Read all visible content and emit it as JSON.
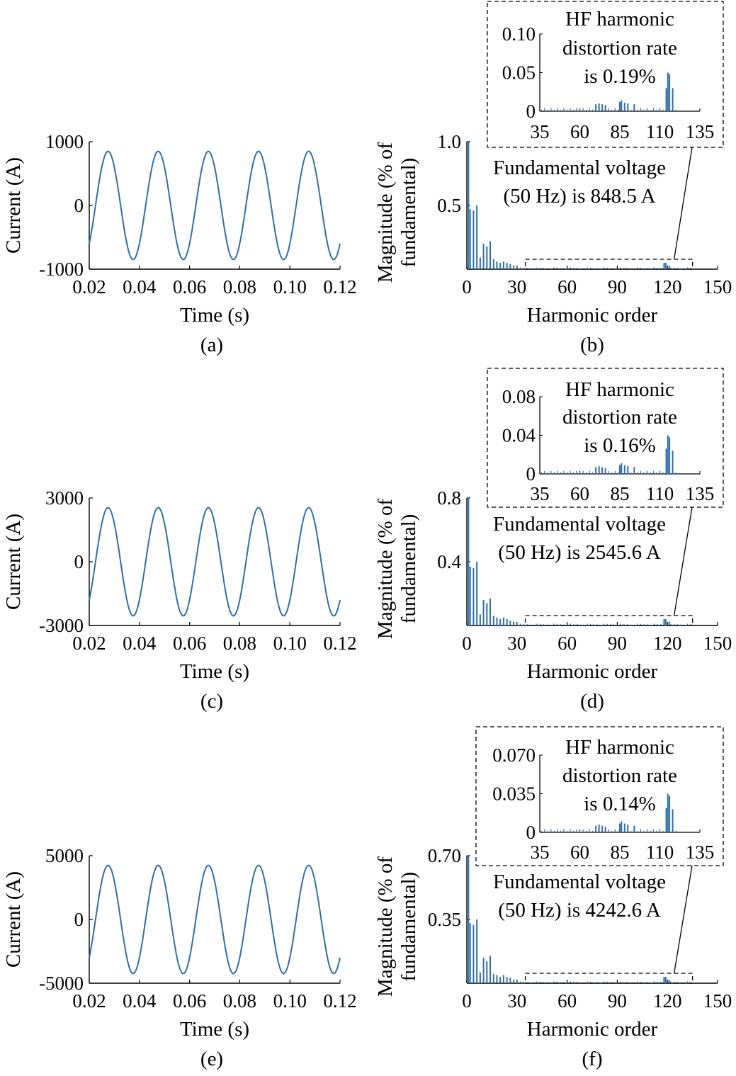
{
  "colors": {
    "line": "#2f6fa8",
    "axis": "#000000"
  },
  "chart_data": [
    {
      "type": "line",
      "id": "a",
      "caption": "(a)",
      "xlabel": "Time (s)",
      "ylabel": "Current (A)",
      "xlim": [
        0.02,
        0.12
      ],
      "ylim": [
        -1000,
        1000
      ],
      "xticks": [
        "0.02",
        "0.04",
        "0.06",
        "0.08",
        "0.10",
        "0.12"
      ],
      "yticks": [
        "-1000",
        "0",
        "1000"
      ],
      "series": [
        {
          "amplitude": 848.5,
          "frequency_hz": 50
        }
      ]
    },
    {
      "type": "bar",
      "id": "b",
      "caption": "(b)",
      "xlabel": "Harmonic order",
      "ylabel_lines": [
        "Magnitude (% of",
        "fundamental)"
      ],
      "xlim": [
        0,
        150
      ],
      "ylim": [
        0,
        1.0
      ],
      "xticks": [
        "0",
        "30",
        "60",
        "90",
        "120",
        "150"
      ],
      "yticks": [
        "0.5",
        "1.0"
      ],
      "annotation": [
        "Fundamental voltage",
        "(50 Hz) is 848.5 A"
      ],
      "bars": [
        {
          "x": 1,
          "y": 1.0
        },
        {
          "x": 2,
          "y": 0.47
        },
        {
          "x": 4,
          "y": 0.46
        },
        {
          "x": 6,
          "y": 0.5
        },
        {
          "x": 8,
          "y": 0.09
        },
        {
          "x": 10,
          "y": 0.2
        },
        {
          "x": 12,
          "y": 0.18
        },
        {
          "x": 14,
          "y": 0.22
        },
        {
          "x": 16,
          "y": 0.08
        },
        {
          "x": 18,
          "y": 0.06
        },
        {
          "x": 20,
          "y": 0.05
        },
        {
          "x": 22,
          "y": 0.06
        },
        {
          "x": 24,
          "y": 0.05
        },
        {
          "x": 26,
          "y": 0.04
        },
        {
          "x": 28,
          "y": 0.03
        },
        {
          "x": 30,
          "y": 0.02
        },
        {
          "x": 118,
          "y": 0.05
        },
        {
          "x": 119,
          "y": 0.05
        },
        {
          "x": 121,
          "y": 0.03
        }
      ],
      "inset": {
        "xlim": [
          35,
          135
        ],
        "ylim": [
          0,
          0.1
        ],
        "xticks": [
          "35",
          "60",
          "85",
          "110",
          "135"
        ],
        "yticks": [
          "0",
          "0.05",
          "0.10"
        ],
        "annotation": [
          "HF harmonic",
          "distortion rate",
          "is 0.19%"
        ],
        "bars": [
          {
            "x": 114,
            "y": 0.03
          },
          {
            "x": 115,
            "y": 0.05
          },
          {
            "x": 116,
            "y": 0.048
          },
          {
            "x": 118,
            "y": 0.03
          },
          {
            "x": 70,
            "y": 0.009
          },
          {
            "x": 72,
            "y": 0.01
          },
          {
            "x": 74,
            "y": 0.009
          },
          {
            "x": 76,
            "y": 0.008
          },
          {
            "x": 85,
            "y": 0.012
          },
          {
            "x": 86,
            "y": 0.014
          },
          {
            "x": 88,
            "y": 0.011
          },
          {
            "x": 90,
            "y": 0.01
          },
          {
            "x": 94,
            "y": 0.009
          }
        ]
      }
    },
    {
      "type": "line",
      "id": "c",
      "caption": "(c)",
      "xlabel": "Time (s)",
      "ylabel": "Current (A)",
      "xlim": [
        0.02,
        0.12
      ],
      "ylim": [
        -3000,
        3000
      ],
      "xticks": [
        "0.02",
        "0.04",
        "0.06",
        "0.08",
        "0.10",
        "0.12"
      ],
      "yticks": [
        "-3000",
        "0",
        "3000"
      ],
      "series": [
        {
          "amplitude": 2545.6,
          "frequency_hz": 50
        }
      ]
    },
    {
      "type": "bar",
      "id": "d",
      "caption": "(d)",
      "xlabel": "Harmonic order",
      "ylabel_lines": [
        "Magnitude (% of",
        "fundamental)"
      ],
      "xlim": [
        0,
        150
      ],
      "ylim": [
        0,
        0.8
      ],
      "xticks": [
        "0",
        "30",
        "60",
        "90",
        "120",
        "150"
      ],
      "yticks": [
        "0.4",
        "0.8"
      ],
      "annotation": [
        "Fundamental voltage",
        "(50 Hz) is 2545.6 A"
      ],
      "bars": [
        {
          "x": 1,
          "y": 0.8
        },
        {
          "x": 2,
          "y": 0.37
        },
        {
          "x": 4,
          "y": 0.36
        },
        {
          "x": 6,
          "y": 0.4
        },
        {
          "x": 8,
          "y": 0.07
        },
        {
          "x": 10,
          "y": 0.16
        },
        {
          "x": 12,
          "y": 0.14
        },
        {
          "x": 14,
          "y": 0.17
        },
        {
          "x": 16,
          "y": 0.06
        },
        {
          "x": 18,
          "y": 0.05
        },
        {
          "x": 20,
          "y": 0.04
        },
        {
          "x": 22,
          "y": 0.05
        },
        {
          "x": 24,
          "y": 0.04
        },
        {
          "x": 26,
          "y": 0.03
        },
        {
          "x": 28,
          "y": 0.025
        },
        {
          "x": 30,
          "y": 0.015
        },
        {
          "x": 118,
          "y": 0.04
        },
        {
          "x": 119,
          "y": 0.04
        },
        {
          "x": 121,
          "y": 0.025
        }
      ],
      "inset": {
        "xlim": [
          35,
          135
        ],
        "ylim": [
          0,
          0.08
        ],
        "xticks": [
          "35",
          "60",
          "85",
          "110",
          "135"
        ],
        "yticks": [
          "0",
          "0.04",
          "0.08"
        ],
        "annotation": [
          "HF harmonic",
          "distortion rate",
          "is 0.16%"
        ],
        "bars": [
          {
            "x": 114,
            "y": 0.026
          },
          {
            "x": 115,
            "y": 0.04
          },
          {
            "x": 116,
            "y": 0.038
          },
          {
            "x": 118,
            "y": 0.024
          },
          {
            "x": 70,
            "y": 0.007
          },
          {
            "x": 72,
            "y": 0.008
          },
          {
            "x": 74,
            "y": 0.007
          },
          {
            "x": 76,
            "y": 0.006
          },
          {
            "x": 85,
            "y": 0.009
          },
          {
            "x": 86,
            "y": 0.011
          },
          {
            "x": 88,
            "y": 0.009
          },
          {
            "x": 90,
            "y": 0.008
          },
          {
            "x": 94,
            "y": 0.007
          }
        ]
      }
    },
    {
      "type": "line",
      "id": "e",
      "caption": "(e)",
      "xlabel": "Time (s)",
      "ylabel": "Current (A)",
      "xlim": [
        0.02,
        0.12
      ],
      "ylim": [
        -5000,
        5000
      ],
      "xticks": [
        "0.02",
        "0.04",
        "0.06",
        "0.08",
        "0.10",
        "0.12"
      ],
      "yticks": [
        "-5000",
        "0",
        "5000"
      ],
      "series": [
        {
          "amplitude": 4242.6,
          "frequency_hz": 50
        }
      ]
    },
    {
      "type": "bar",
      "id": "f",
      "caption": "(f)",
      "xlabel": "Harmonic order",
      "ylabel_lines": [
        "Magnitude (% of",
        "fundamental)"
      ],
      "xlim": [
        0,
        150
      ],
      "ylim": [
        0,
        0.7
      ],
      "xticks": [
        "0",
        "30",
        "60",
        "90",
        "120",
        "150"
      ],
      "yticks": [
        "0.35",
        "0.70"
      ],
      "annotation": [
        "Fundamental voltage",
        "(50 Hz) is 4242.6 A"
      ],
      "bars": [
        {
          "x": 1,
          "y": 0.7
        },
        {
          "x": 2,
          "y": 0.33
        },
        {
          "x": 4,
          "y": 0.32
        },
        {
          "x": 6,
          "y": 0.35
        },
        {
          "x": 8,
          "y": 0.06
        },
        {
          "x": 10,
          "y": 0.14
        },
        {
          "x": 12,
          "y": 0.12
        },
        {
          "x": 14,
          "y": 0.15
        },
        {
          "x": 16,
          "y": 0.05
        },
        {
          "x": 18,
          "y": 0.045
        },
        {
          "x": 20,
          "y": 0.035
        },
        {
          "x": 22,
          "y": 0.045
        },
        {
          "x": 24,
          "y": 0.035
        },
        {
          "x": 26,
          "y": 0.03
        },
        {
          "x": 28,
          "y": 0.02
        },
        {
          "x": 30,
          "y": 0.012
        },
        {
          "x": 118,
          "y": 0.035
        },
        {
          "x": 119,
          "y": 0.035
        },
        {
          "x": 121,
          "y": 0.02
        }
      ],
      "inset": {
        "xlim": [
          35,
          135
        ],
        "ylim": [
          0,
          0.07
        ],
        "xticks": [
          "35",
          "60",
          "85",
          "110",
          "135"
        ],
        "yticks": [
          "0",
          "0.035",
          "0.070"
        ],
        "annotation": [
          "HF harmonic",
          "distortion rate",
          "is 0.14%"
        ],
        "bars": [
          {
            "x": 114,
            "y": 0.022
          },
          {
            "x": 115,
            "y": 0.035
          },
          {
            "x": 116,
            "y": 0.033
          },
          {
            "x": 118,
            "y": 0.021
          },
          {
            "x": 70,
            "y": 0.006
          },
          {
            "x": 72,
            "y": 0.007
          },
          {
            "x": 74,
            "y": 0.006
          },
          {
            "x": 76,
            "y": 0.005
          },
          {
            "x": 85,
            "y": 0.008
          },
          {
            "x": 86,
            "y": 0.01
          },
          {
            "x": 88,
            "y": 0.008
          },
          {
            "x": 90,
            "y": 0.007
          },
          {
            "x": 94,
            "y": 0.006
          }
        ]
      }
    }
  ]
}
